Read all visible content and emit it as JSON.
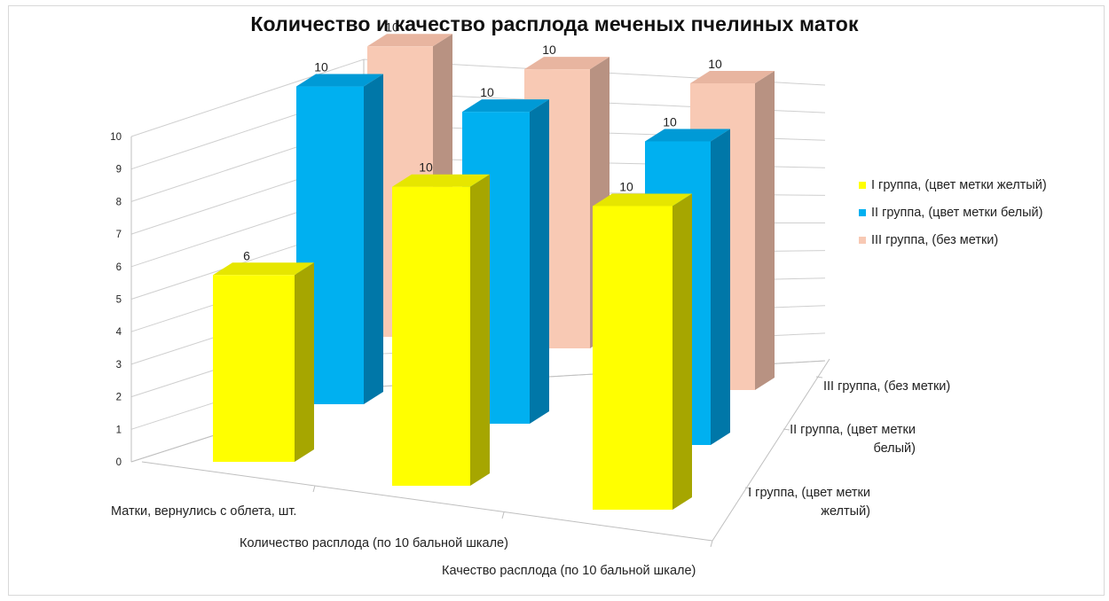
{
  "chart_data": {
    "type": "bar",
    "title": "Количество и качество расплода меченых пчелиных маток",
    "categories": [
      "Матки, вернулись с облета, шт.",
      "Количество расплода (по 10 бальной шкале)",
      "Качество расплода  (по 10 бальной шкале)"
    ],
    "series": [
      {
        "name": "I группа, (цвет метки желтый)",
        "values": [
          6,
          10,
          10
        ]
      },
      {
        "name": "II группа, (цвет метки белый)",
        "values": [
          10,
          10,
          10
        ]
      },
      {
        "name": "III группа, (без метки)",
        "values": [
          10,
          10,
          10
        ]
      }
    ],
    "depth_axis_labels": [
      "I группа, (цвет метки желтый)",
      "II группа, (цвет метки белый)",
      "III группа, (без метки)"
    ],
    "y_ticks": [
      "0",
      "1",
      "2",
      "3",
      "4",
      "5",
      "6",
      "7",
      "8",
      "9",
      "10"
    ],
    "ylim": [
      0,
      10
    ],
    "grid": true,
    "legend_position": "right",
    "data_labels": true,
    "colors": {
      "series": [
        "#FFFF00",
        "#00B0F0",
        "#F8C9B4"
      ],
      "sides": [
        "#A6A600",
        "#0077A8",
        "#B89282"
      ],
      "tops": [
        "#E6E600",
        "#009AD6",
        "#E8B5A0"
      ]
    }
  }
}
